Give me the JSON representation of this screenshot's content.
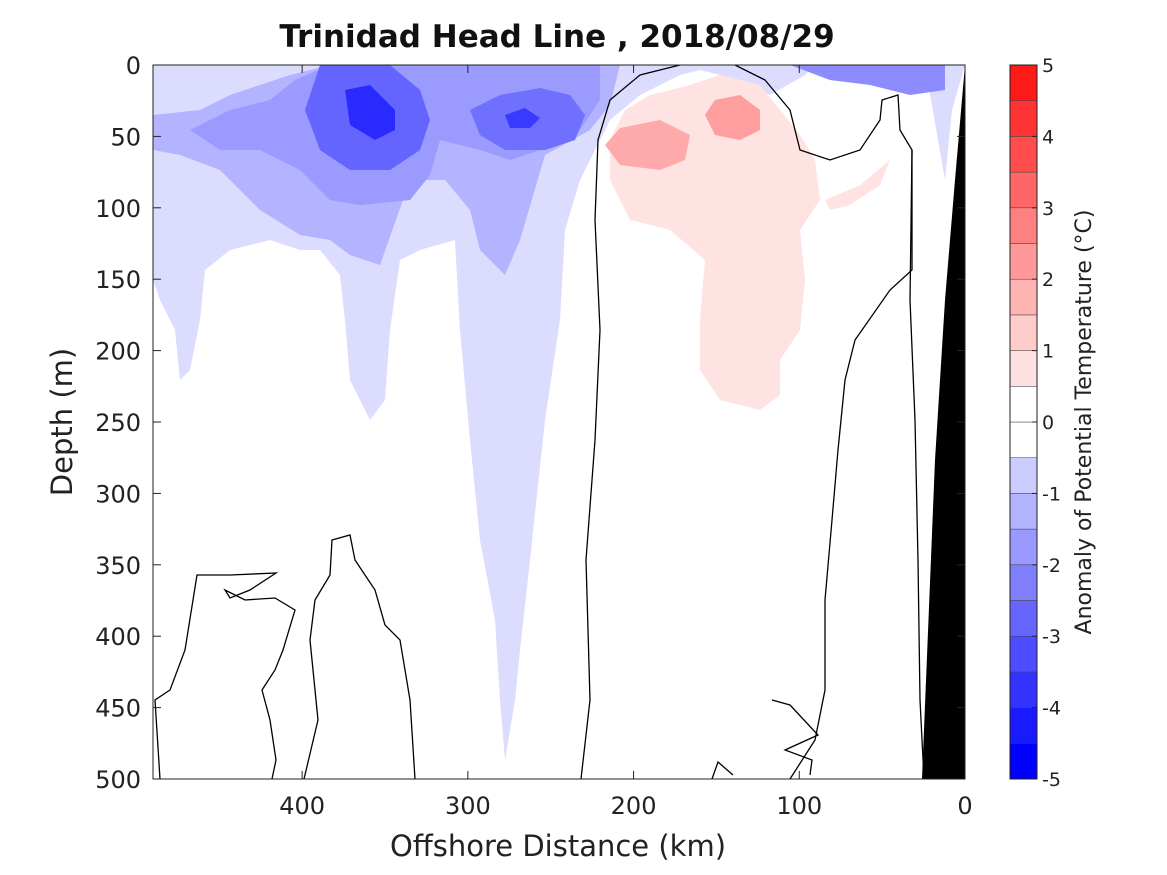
{
  "chart_data": {
    "type": "heatmap",
    "subtype": "filled-contour",
    "title": "Trinidad Head Line , 2018/08/29",
    "xlabel": "Offshore Distance (km)",
    "ylabel": "Depth (m)",
    "x_direction": "reversed",
    "y_direction": "reversed",
    "xlim": [
      490,
      0
    ],
    "ylim": [
      0,
      500
    ],
    "xticks": [
      400,
      300,
      200,
      100,
      0
    ],
    "xtick_labels": [
      "400",
      "300",
      "200",
      "100",
      "0"
    ],
    "yticks": [
      0,
      50,
      100,
      150,
      200,
      250,
      300,
      350,
      400,
      450,
      500
    ],
    "ytick_labels": [
      "0",
      "50",
      "100",
      "150",
      "200",
      "250",
      "300",
      "350",
      "400",
      "450",
      "500"
    ],
    "colorbar": {
      "label": "Anomaly of Potential Temperature (°C)",
      "range": [
        -5,
        5
      ],
      "level_step": 0.5,
      "ticks": [
        5,
        4,
        3,
        2,
        1,
        0,
        -1,
        -2,
        -3,
        -4,
        -5
      ],
      "tick_labels": [
        "5",
        "4",
        "3",
        "2",
        "1",
        "0",
        "-1",
        "-2",
        "-3",
        "-4",
        "-5"
      ],
      "colormap": "blue-white-red",
      "bands": [
        {
          "range": [
            -5.0,
            -4.5
          ],
          "color": "#0000ff"
        },
        {
          "range": [
            -4.5,
            -4.0
          ],
          "color": "#1a1aff"
        },
        {
          "range": [
            -4.0,
            -3.5
          ],
          "color": "#3333ff"
        },
        {
          "range": [
            -3.5,
            -3.0
          ],
          "color": "#4d4dff"
        },
        {
          "range": [
            -3.0,
            -2.5
          ],
          "color": "#6666ff"
        },
        {
          "range": [
            -2.5,
            -2.0
          ],
          "color": "#8080ff"
        },
        {
          "range": [
            -2.0,
            -1.5
          ],
          "color": "#9999ff"
        },
        {
          "range": [
            -1.5,
            -1.0
          ],
          "color": "#b3b3ff"
        },
        {
          "range": [
            -1.0,
            -0.5
          ],
          "color": "#ccccff"
        },
        {
          "range": [
            -0.5,
            0.0
          ],
          "color": "#ffffff"
        },
        {
          "range": [
            0.0,
            0.5
          ],
          "color": "#ffffff"
        },
        {
          "range": [
            0.5,
            1.0
          ],
          "color": "#ffe0e0"
        },
        {
          "range": [
            1.0,
            1.5
          ],
          "color": "#ffcccc"
        },
        {
          "range": [
            1.5,
            2.0
          ],
          "color": "#ffb3b3"
        },
        {
          "range": [
            2.0,
            2.5
          ],
          "color": "#ff9999"
        },
        {
          "range": [
            2.5,
            3.0
          ],
          "color": "#ff8080"
        },
        {
          "range": [
            3.0,
            3.5
          ],
          "color": "#ff6666"
        },
        {
          "range": [
            3.5,
            4.0
          ],
          "color": "#ff4d4d"
        },
        {
          "range": [
            4.0,
            4.5
          ],
          "color": "#ff3333"
        },
        {
          "range": [
            4.5,
            5.0
          ],
          "color": "#ff1a1a"
        }
      ]
    },
    "contour_regions": [
      {
        "name": "cold surface core (~375 km)",
        "level": -2.5,
        "points": [
          [
            400,
            10
          ],
          [
            385,
            0
          ],
          [
            360,
            0
          ],
          [
            335,
            20
          ],
          [
            330,
            50
          ],
          [
            345,
            75
          ],
          [
            365,
            80
          ],
          [
            385,
            65
          ],
          [
            400,
            40
          ]
        ]
      },
      {
        "name": "cold core (~365 km)",
        "level": -4.0,
        "points": [
          [
            375,
            20
          ],
          [
            360,
            15
          ],
          [
            348,
            30
          ],
          [
            348,
            50
          ],
          [
            360,
            55
          ],
          [
            375,
            40
          ]
        ]
      },
      {
        "name": "cold core (~265 km)",
        "level": -2.5,
        "points": [
          [
            290,
            40
          ],
          [
            275,
            25
          ],
          [
            255,
            25
          ],
          [
            245,
            40
          ],
          [
            255,
            55
          ],
          [
            275,
            55
          ]
        ]
      },
      {
        "name": "cold core (~265 km, centre)",
        "level": -3.5,
        "points": [
          [
            275,
            40
          ],
          [
            265,
            32
          ],
          [
            255,
            38
          ],
          [
            262,
            45
          ]
        ]
      },
      {
        "name": "warm core (~190 km)",
        "level": 1.5,
        "points": [
          [
            210,
            45
          ],
          [
            200,
            40
          ],
          [
            180,
            45
          ],
          [
            170,
            55
          ],
          [
            180,
            68
          ],
          [
            200,
            70
          ],
          [
            212,
            60
          ]
        ]
      },
      {
        "name": "warm core (~145 km)",
        "level": 1.5,
        "points": [
          [
            160,
            35
          ],
          [
            145,
            25
          ],
          [
            130,
            30
          ],
          [
            128,
            45
          ],
          [
            140,
            52
          ],
          [
            155,
            48
          ]
        ]
      },
      {
        "name": "warm anomaly (140–220 km)",
        "level": 0.75,
        "points": [
          [
            215,
            40
          ],
          [
            200,
            30
          ],
          [
            180,
            30
          ],
          [
            160,
            15
          ],
          [
            140,
            10
          ],
          [
            120,
            25
          ],
          [
            115,
            50
          ],
          [
            105,
            70
          ],
          [
            95,
            100
          ],
          [
            105,
            120
          ],
          [
            100,
            160
          ],
          [
            95,
            200
          ],
          [
            105,
            240
          ],
          [
            125,
            240
          ],
          [
            150,
            220
          ],
          [
            150,
            150
          ],
          [
            165,
            100
          ],
          [
            200,
            95
          ],
          [
            220,
            80
          ]
        ]
      },
      {
        "name": "warm patch (~60 km)",
        "level": 0.75,
        "points": [
          [
            85,
            100
          ],
          [
            65,
            80
          ],
          [
            45,
            65
          ],
          [
            50,
            80
          ],
          [
            70,
            100
          ]
        ]
      },
      {
        "name": "cool near-coast (~30 km)",
        "level": -1.0,
        "points": [
          [
            30,
            0
          ],
          [
            10,
            0
          ],
          [
            8,
            60
          ],
          [
            15,
            85
          ],
          [
            30,
            60
          ],
          [
            40,
            40
          ]
        ]
      }
    ],
    "zero_contour_lines": [
      {
        "name": "zero line (~230 km)",
        "points": [
          [
            230,
            500
          ],
          [
            235,
            430
          ],
          [
            230,
            330
          ],
          [
            235,
            240
          ],
          [
            240,
            150
          ],
          [
            232,
            55
          ],
          [
            220,
            20
          ],
          [
            190,
            0
          ]
        ]
      },
      {
        "name": "zero line (~120 km)",
        "points": [
          [
            120,
            0
          ],
          [
            110,
            40
          ],
          [
            100,
            65
          ],
          [
            75,
            60
          ],
          [
            60,
            40
          ],
          [
            55,
            20
          ]
        ]
      },
      {
        "name": "zero line (~75 km)",
        "points": [
          [
            90,
            500
          ],
          [
            110,
            475
          ],
          [
            120,
            440
          ],
          [
            95,
            400
          ],
          [
            85,
            300
          ],
          [
            80,
            200
          ],
          [
            70,
            180
          ],
          [
            50,
            150
          ],
          [
            30,
            100
          ],
          [
            35,
            60
          ],
          [
            45,
            30
          ],
          [
            50,
            20
          ]
        ]
      },
      {
        "name": "zero line (deep, ~400–480 km)",
        "points": [
          [
            480,
            500
          ],
          [
            470,
            440
          ],
          [
            455,
            370
          ],
          [
            435,
            355
          ],
          [
            410,
            360
          ],
          [
            425,
            375
          ],
          [
            405,
            440
          ],
          [
            410,
            500
          ]
        ]
      },
      {
        "name": "zero line (deep, ~330–380 km)",
        "points": [
          [
            395,
            500
          ],
          [
            388,
            420
          ],
          [
            375,
            360
          ],
          [
            365,
            330
          ],
          [
            355,
            340
          ],
          [
            350,
            370
          ],
          [
            340,
            400
          ],
          [
            335,
            440
          ],
          [
            330,
            500
          ]
        ]
      }
    ],
    "bathymetry": {
      "color": "#000000",
      "points": [
        [
          0,
          0
        ],
        [
          0,
          500
        ],
        [
          25,
          500
        ],
        [
          15,
          150
        ],
        [
          5,
          50
        ]
      ]
    }
  }
}
